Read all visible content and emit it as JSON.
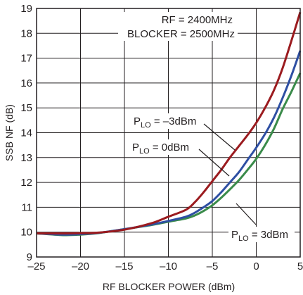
{
  "chart_data": {
    "type": "line",
    "title": "",
    "xlabel": "RF BLOCKER POWER (dBm)",
    "ylabel": "SSB NF (dB)",
    "xlim": [
      -25,
      5
    ],
    "ylim": [
      9,
      19
    ],
    "xticks": [
      -25,
      -20,
      -15,
      -10,
      -5,
      0,
      5
    ],
    "yticks": [
      9,
      10,
      11,
      12,
      13,
      14,
      15,
      16,
      17,
      18,
      19
    ],
    "xtick_labels": [
      "–25",
      "–20",
      "–15",
      "–10",
      "–5",
      "0",
      "5"
    ],
    "grid": true,
    "conditions": [
      "RF = 2400MHz",
      "BLOCKER = 2500MHz"
    ],
    "series": [
      {
        "label_main": "P",
        "label_sub": "LO",
        "label_value": " = –3dBm",
        "color": "#9b1b1f",
        "x": [
          -25,
          -22,
          -20,
          -18,
          -15,
          -12,
          -10,
          -8,
          -7,
          -6,
          -5,
          -4,
          -3,
          -2,
          -1,
          0,
          1,
          2,
          3,
          4,
          5
        ],
        "y": [
          9.95,
          9.95,
          9.96,
          9.98,
          10.1,
          10.35,
          10.62,
          10.9,
          11.2,
          11.6,
          12.05,
          12.5,
          13.0,
          13.45,
          13.9,
          14.4,
          15.0,
          15.7,
          16.6,
          17.7,
          18.85
        ]
      },
      {
        "label_main": "P",
        "label_sub": "LO",
        "label_value": " = 0dBm",
        "color": "#2e4fa3",
        "x": [
          -25,
          -22,
          -20,
          -18,
          -15,
          -12,
          -10,
          -8,
          -7,
          -6,
          -5,
          -4,
          -3,
          -2,
          -1,
          0,
          1,
          2,
          3,
          4,
          5
        ],
        "y": [
          9.95,
          9.9,
          9.92,
          9.97,
          10.12,
          10.3,
          10.45,
          10.62,
          10.78,
          11.0,
          11.25,
          11.6,
          12.0,
          12.4,
          12.9,
          13.4,
          13.95,
          14.6,
          15.4,
          16.3,
          17.3
        ]
      },
      {
        "label_main": "P",
        "label_sub": "LO",
        "label_value": " = 3dBm",
        "color": "#3a8b4a",
        "x": [
          -25,
          -22,
          -20,
          -18,
          -15,
          -12,
          -10,
          -8,
          -7,
          -6,
          -5,
          -4,
          -3,
          -2,
          -1,
          0,
          1,
          2,
          3,
          4,
          5
        ],
        "y": [
          9.95,
          9.88,
          9.9,
          9.96,
          10.12,
          10.28,
          10.42,
          10.55,
          10.67,
          10.85,
          11.08,
          11.38,
          11.72,
          12.08,
          12.5,
          12.95,
          13.5,
          14.15,
          14.95,
          15.65,
          16.4
        ]
      }
    ]
  }
}
